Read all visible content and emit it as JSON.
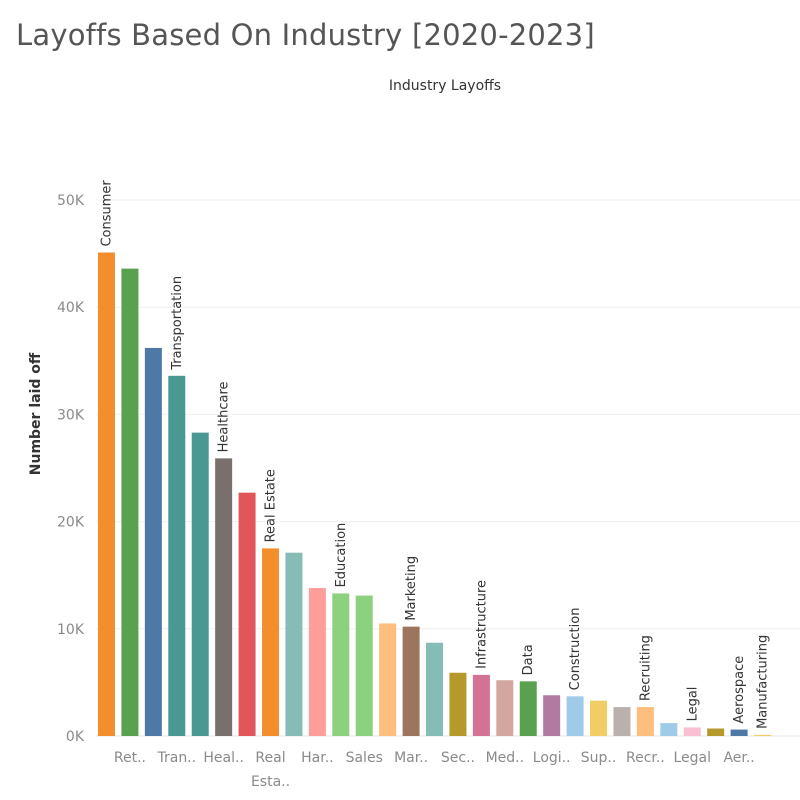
{
  "page": {
    "title": "Layoffs Based On Industry [2020-2023]"
  },
  "chart_data": {
    "type": "bar",
    "title": "Industry Layoffs",
    "xlabel": "",
    "ylabel": "Number laid off",
    "ylim": [
      0,
      60000
    ],
    "yticks": [
      0,
      10000,
      20000,
      30000,
      40000,
      50000
    ],
    "ytick_labels": [
      "0K",
      "10K",
      "20K",
      "30K",
      "40K",
      "50K"
    ],
    "grid": true,
    "bars": [
      {
        "label": "Consumer",
        "value": 45100,
        "color": "#f28e2b"
      },
      {
        "label": "",
        "value": 43600,
        "color": "#59a14f"
      },
      {
        "label": "",
        "value": 36200,
        "color": "#4e79a7"
      },
      {
        "label": "Transportation",
        "value": 33600,
        "color": "#499894"
      },
      {
        "label": "",
        "value": 28300,
        "color": "#499894"
      },
      {
        "label": "Healthcare",
        "value": 25900,
        "color": "#79706e"
      },
      {
        "label": "",
        "value": 22700,
        "color": "#e15759"
      },
      {
        "label": "Real Estate",
        "value": 17500,
        "color": "#f28e2b"
      },
      {
        "label": "",
        "value": 17100,
        "color": "#86bcb6"
      },
      {
        "label": "",
        "value": 13800,
        "color": "#ff9d9a"
      },
      {
        "label": "Education",
        "value": 13300,
        "color": "#8cd17d"
      },
      {
        "label": "",
        "value": 13100,
        "color": "#8cd17d"
      },
      {
        "label": "",
        "value": 10500,
        "color": "#ffbe7d"
      },
      {
        "label": "Marketing",
        "value": 10200,
        "color": "#9c755f"
      },
      {
        "label": "",
        "value": 8700,
        "color": "#86bcb6"
      },
      {
        "label": "",
        "value": 5900,
        "color": "#b6992d"
      },
      {
        "label": "Infrastructure",
        "value": 5700,
        "color": "#d37295"
      },
      {
        "label": "",
        "value": 5200,
        "color": "#d4a6a0"
      },
      {
        "label": "Data",
        "value": 5100,
        "color": "#59a14f"
      },
      {
        "label": "",
        "value": 3800,
        "color": "#b07aa1"
      },
      {
        "label": "Construction",
        "value": 3700,
        "color": "#a0cbe8"
      },
      {
        "label": "",
        "value": 3300,
        "color": "#f1ce63"
      },
      {
        "label": "",
        "value": 2700,
        "color": "#bab0ac"
      },
      {
        "label": "Recruiting",
        "value": 2700,
        "color": "#ffbe7d"
      },
      {
        "label": "",
        "value": 1200,
        "color": "#a0cbe8"
      },
      {
        "label": "Legal",
        "value": 800,
        "color": "#fabfd2"
      },
      {
        "label": "",
        "value": 700,
        "color": "#b6992d"
      },
      {
        "label": "Aerospace",
        "value": 600,
        "color": "#4e79a7"
      },
      {
        "label": "Manufacturing",
        "value": 100,
        "color": "#f1ce63"
      }
    ],
    "x_tick_labels": [
      {
        "text": "Ret..",
        "bar": 1
      },
      {
        "text": "Tran..",
        "bar": 3
      },
      {
        "text": "Heal..",
        "bar": 5
      },
      {
        "text": "Real",
        "text2": "Esta..",
        "bar": 7
      },
      {
        "text": "Har..",
        "bar": 9
      },
      {
        "text": "Sales",
        "bar": 11
      },
      {
        "text": "Mar..",
        "bar": 13
      },
      {
        "text": "Sec..",
        "bar": 15
      },
      {
        "text": "Med..",
        "bar": 17
      },
      {
        "text": "Logi..",
        "bar": 19
      },
      {
        "text": "Sup..",
        "bar": 21
      },
      {
        "text": "Recr..",
        "bar": 23
      },
      {
        "text": "Legal",
        "bar": 25
      },
      {
        "text": "Aer..",
        "bar": 27
      }
    ]
  }
}
